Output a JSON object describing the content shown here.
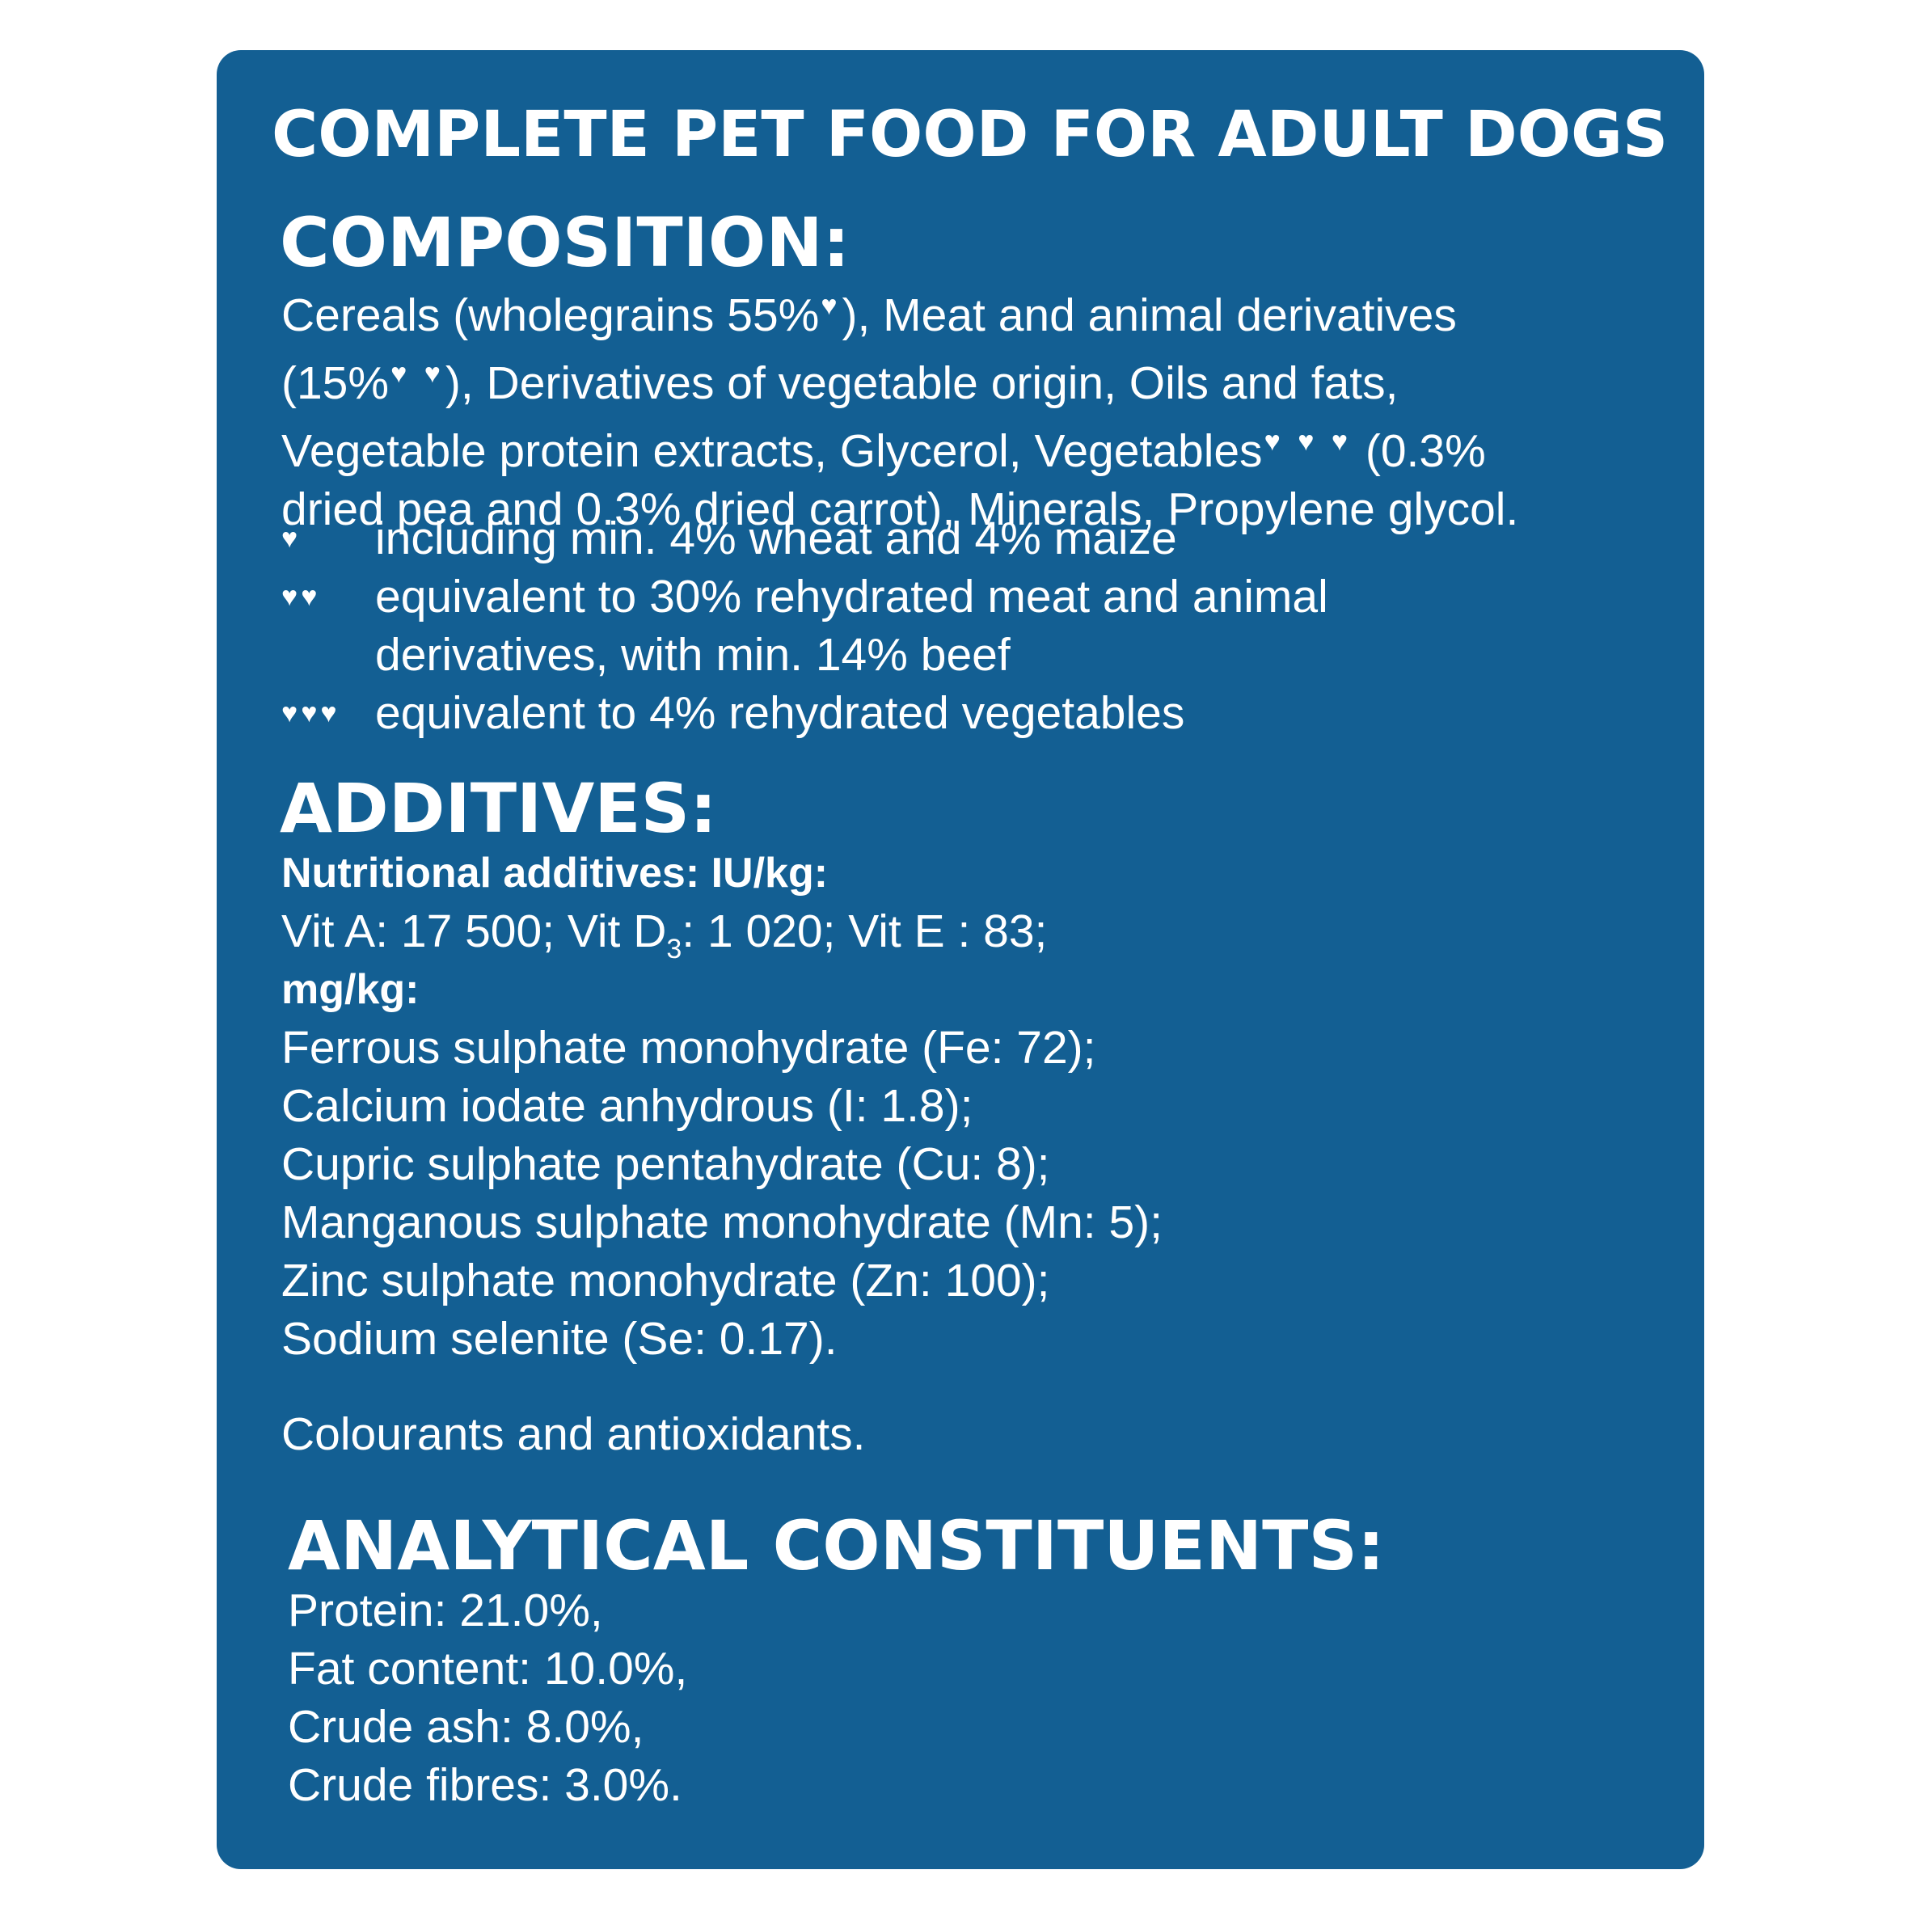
{
  "colors": {
    "panel_background": "#135f93",
    "text": "#ffffff",
    "page_background": "#ffffff"
  },
  "title": "COMPLETE PET FOOD FOR ADULT DOGS",
  "composition": {
    "heading": "COMPOSITION:",
    "lines": [
      {
        "parts": [
          "Cereals (wholegrains 55%",
          "♥",
          "), Meat and animal derivatives"
        ]
      },
      {
        "parts": [
          "(15%",
          "♥ ♥",
          "), Derivatives of vegetable origin, Oils and fats,"
        ]
      },
      {
        "parts": [
          "Vegetable protein extracts, Glycerol, Vegetables",
          "♥ ♥ ♥",
          " (0.3%"
        ]
      },
      {
        "parts": [
          "dried pea and 0.3% dried carrot), Minerals, Propylene glycol.",
          "",
          ""
        ]
      }
    ],
    "footnotes": [
      {
        "marker": "♥",
        "text": "including min. 4% wheat and 4% maize",
        "continuation": ""
      },
      {
        "marker": "♥♥",
        "text": "equivalent to 30% rehydrated meat and animal",
        "continuation": "derivatives, with min. 14% beef"
      },
      {
        "marker": "♥♥♥",
        "text": "equivalent to 4% rehydrated vegetables",
        "continuation": ""
      }
    ]
  },
  "additives": {
    "heading": "ADDITIVES:",
    "nutritional_label": "Nutritional additives: IU/kg:",
    "vitamins": {
      "part1": "Vit A: 17 500; Vit D",
      "subscript": "3",
      "part2": ": 1 020; Vit E : 83;"
    },
    "mgkg_label": "mg/kg:",
    "minerals": [
      "Ferrous sulphate monohydrate (Fe: 72);",
      "Calcium iodate anhydrous (I: 1.8);",
      "Cupric sulphate pentahydrate (Cu: 8);",
      "Manganous sulphate monohydrate (Mn: 5);",
      "Zinc sulphate monohydrate (Zn: 100);",
      "Sodium selenite (Se: 0.17)."
    ],
    "colourants": "Colourants and antioxidants."
  },
  "analytical": {
    "heading": "ANALYTICAL CONSTITUENTS:",
    "items": [
      "Protein: 21.0%,",
      "Fat content: 10.0%,",
      "Crude ash: 8.0%,",
      "Crude fibres: 3.0%."
    ]
  }
}
